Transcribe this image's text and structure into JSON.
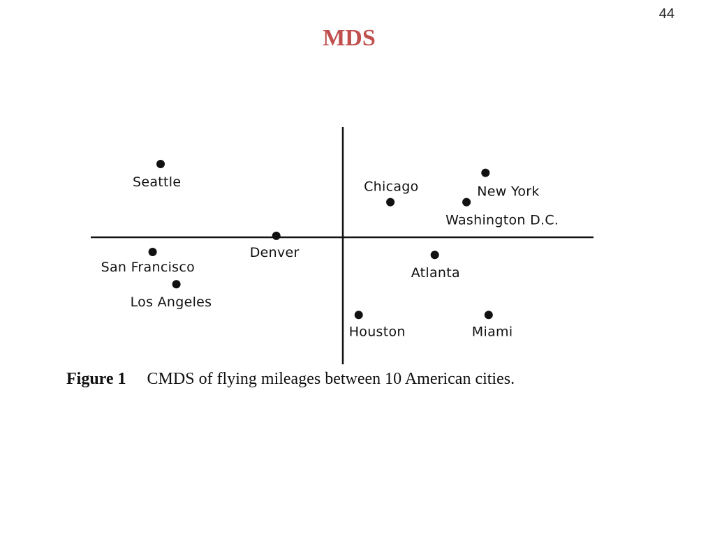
{
  "slide": {
    "number": "44",
    "title": "MDS"
  },
  "caption": {
    "label": "Figure 1",
    "text": "CMDS of flying mileages between 10 American cities."
  },
  "colors": {
    "title": "#c0504d",
    "ink": "#111111"
  },
  "chart_data": {
    "type": "scatter",
    "title": "",
    "xlabel": "",
    "ylabel": "",
    "grid": false,
    "axes": "crossing at origin, no ticks",
    "xlim": [
      -1.6,
      1.6
    ],
    "ylim": [
      -0.85,
      0.85
    ],
    "points": [
      {
        "label": "Seattle",
        "x": -1.15,
        "y": 0.5
      },
      {
        "label": "San Francisco",
        "x": -1.2,
        "y": -0.1
      },
      {
        "label": "Los Angeles",
        "x": -1.05,
        "y": -0.32
      },
      {
        "label": "Denver",
        "x": -0.42,
        "y": 0.01
      },
      {
        "label": "Chicago",
        "x": 0.3,
        "y": 0.24
      },
      {
        "label": "New York",
        "x": 0.9,
        "y": 0.44
      },
      {
        "label": "Washington D.C.",
        "x": 0.78,
        "y": 0.24
      },
      {
        "label": "Atlanta",
        "x": 0.58,
        "y": -0.12
      },
      {
        "label": "Houston",
        "x": 0.1,
        "y": -0.53
      },
      {
        "label": "Miami",
        "x": 0.92,
        "y": -0.53
      }
    ]
  }
}
